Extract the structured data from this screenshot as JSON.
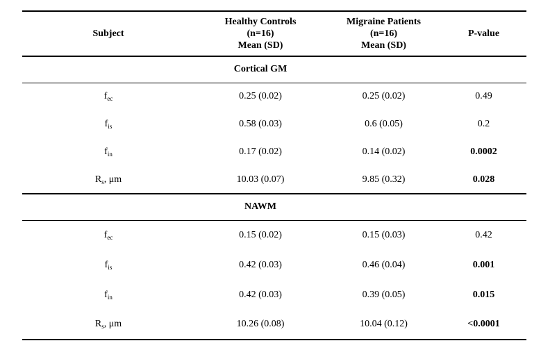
{
  "page": {
    "background_color": "#ffffff",
    "text_color": "#000000",
    "rule_color": "#000000"
  },
  "table": {
    "header": {
      "subject": "Subject",
      "healthy_controls": {
        "line1": "Healthy Controls",
        "line2": "(n=16)",
        "line3": "Mean (SD)"
      },
      "migraine_patients": {
        "line1": "Migraine Patients",
        "line2": "(n=16)",
        "line3": "Mean (SD)"
      },
      "p_value": "P-value"
    },
    "sections": [
      {
        "title": "Cortical GM",
        "rows": [
          {
            "metric_base": "f",
            "metric_sub": "ec",
            "metric_suffix": "",
            "healthy": "0.25 (0.02)",
            "migraine": "0.25 (0.02)",
            "p": "0.49",
            "p_significant": false
          },
          {
            "metric_base": "f",
            "metric_sub": "is",
            "metric_suffix": "",
            "healthy": "0.58 (0.03)",
            "migraine": "0.6 (0.05)",
            "p": "0.2",
            "p_significant": false
          },
          {
            "metric_base": "f",
            "metric_sub": "in",
            "metric_suffix": "",
            "healthy": "0.17 (0.02)",
            "migraine": "0.14 (0.02)",
            "p": "0.0002",
            "p_significant": true
          },
          {
            "metric_base": "R",
            "metric_sub": "s",
            "metric_suffix": ", μm",
            "healthy": "10.03 (0.07)",
            "migraine": "9.85 (0.32)",
            "p": "0.028",
            "p_significant": true
          }
        ]
      },
      {
        "title": "NAWM",
        "rows": [
          {
            "metric_base": "f",
            "metric_sub": "ec",
            "metric_suffix": "",
            "healthy": "0.15 (0.02)",
            "migraine": "0.15 (0.03)",
            "p": "0.42",
            "p_significant": false
          },
          {
            "metric_base": "f",
            "metric_sub": "is",
            "metric_suffix": "",
            "healthy": "0.42 (0.03)",
            "migraine": "0.46 (0.04)",
            "p": "0.001",
            "p_significant": true
          },
          {
            "metric_base": "f",
            "metric_sub": "in",
            "metric_suffix": "",
            "healthy": "0.42 (0.03)",
            "migraine": "0.39 (0.05)",
            "p": "0.015",
            "p_significant": true
          },
          {
            "metric_base": "R",
            "metric_sub": "s",
            "metric_suffix": ", μm",
            "healthy": "10.26 (0.08)",
            "migraine": "10.04 (0.12)",
            "p": "<0.0001",
            "p_significant": true
          }
        ]
      }
    ]
  }
}
